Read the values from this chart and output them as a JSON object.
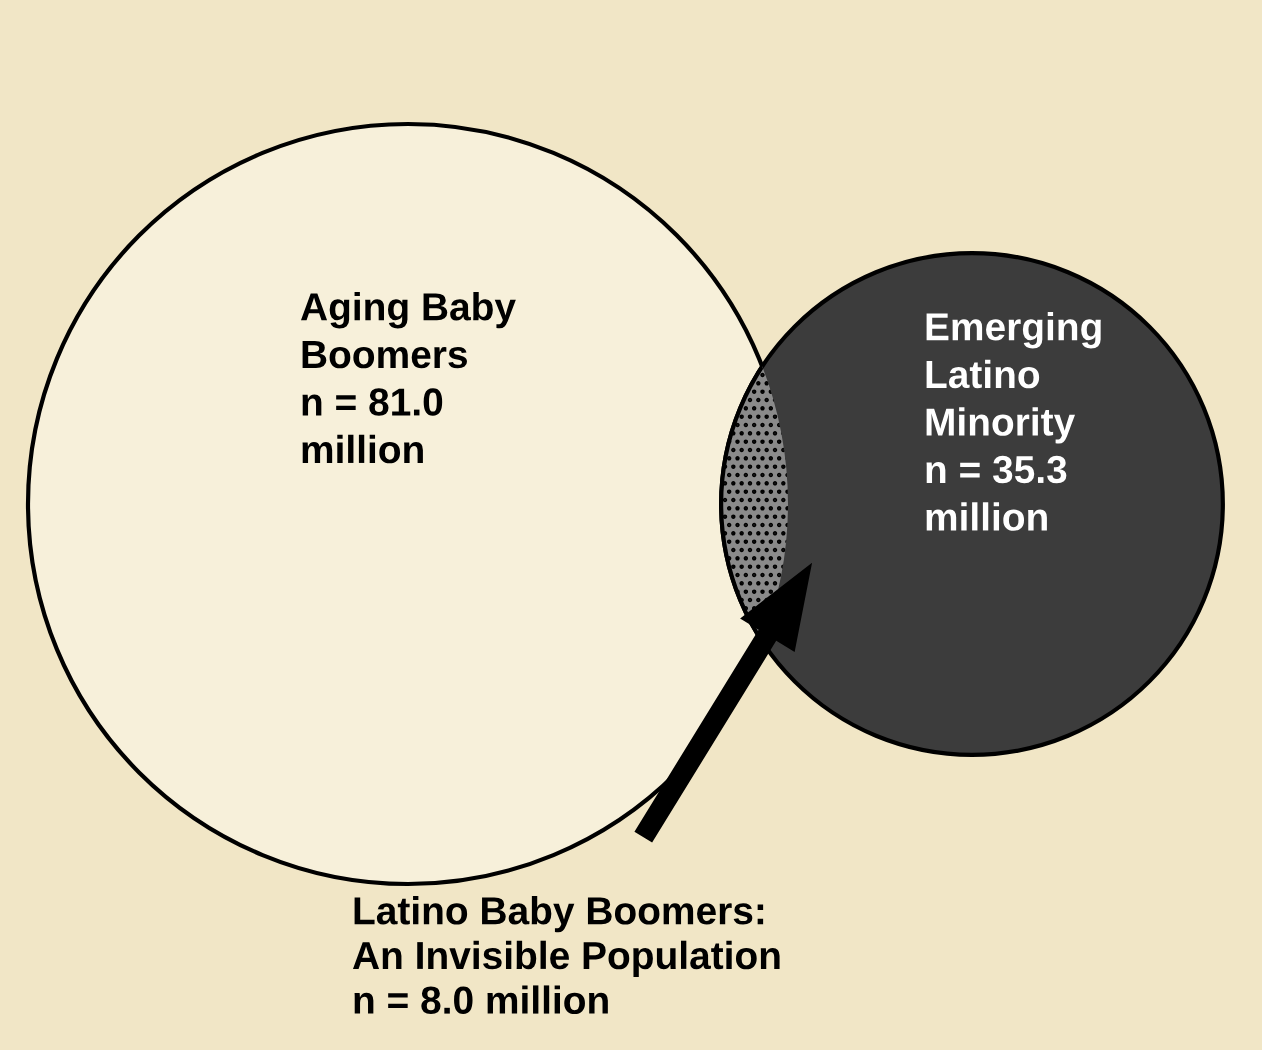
{
  "chart_data": {
    "type": "other",
    "categories": [
      "Aging Baby Boomers",
      "Emerging Latino Minority"
    ],
    "values": [
      81.0,
      35.3
    ],
    "value_labels": [
      "n = 81.0 million",
      "n = 35.3 million"
    ],
    "colors": [
      "#f7f0da",
      "#3c3c3c"
    ],
    "annotations": [
      "Latino Baby Boomers:\nAn Invisible Population\nn = 8.0 million"
    ]
  }
}
